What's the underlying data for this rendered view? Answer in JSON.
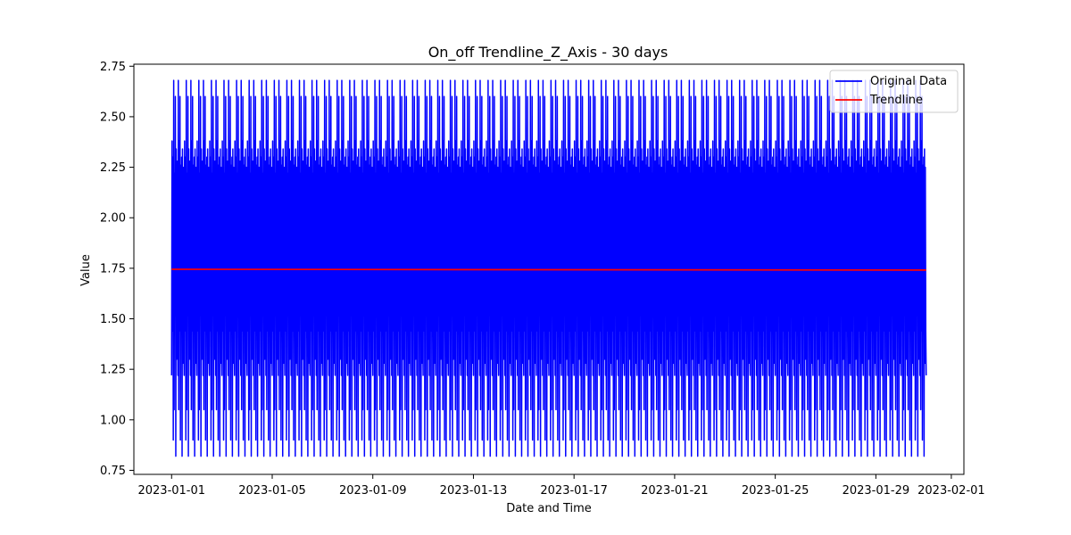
{
  "chart_data": {
    "type": "line",
    "title": "On_off Trendline_Z_Axis - 30 days",
    "xlabel": "Date and Time",
    "ylabel": "Value",
    "x_range": [
      "2023-01-01",
      "2023-01-31"
    ],
    "xlim": [
      "2022-12-30T12:00",
      "2023-02-01T12:00"
    ],
    "ylim": [
      0.73,
      2.76
    ],
    "x_ticks": [
      "2023-01-01",
      "2023-01-05",
      "2023-01-09",
      "2023-01-13",
      "2023-01-17",
      "2023-01-21",
      "2023-01-25",
      "2023-01-29",
      "2023-02-01"
    ],
    "y_ticks": [
      "0.75",
      "1.00",
      "1.25",
      "1.50",
      "1.75",
      "2.00",
      "2.25",
      "2.50",
      "2.75"
    ],
    "legend": {
      "placement": "top-right",
      "entries": [
        "Original Data",
        "Trendline"
      ]
    },
    "grid": false,
    "series": [
      {
        "name": "Original Data",
        "color": "#0000ff",
        "cycle_values": [
          1.22,
          2.38,
          1.44,
          2.3,
          0.9,
          2.68,
          1.05,
          2.22,
          1.6,
          2.6,
          0.82,
          2.34,
          1.3,
          1.95,
          2.28,
          1.22,
          2.68,
          1.05,
          2.38,
          1.44,
          2.6,
          0.9,
          2.26,
          1.5,
          2.3,
          0.82,
          2.34,
          1.28,
          2.25,
          1.44
        ],
        "cycles_per_day": 2
      },
      {
        "name": "Trendline",
        "color": "#ff0000",
        "start": 1.745,
        "end": 1.741
      }
    ]
  }
}
